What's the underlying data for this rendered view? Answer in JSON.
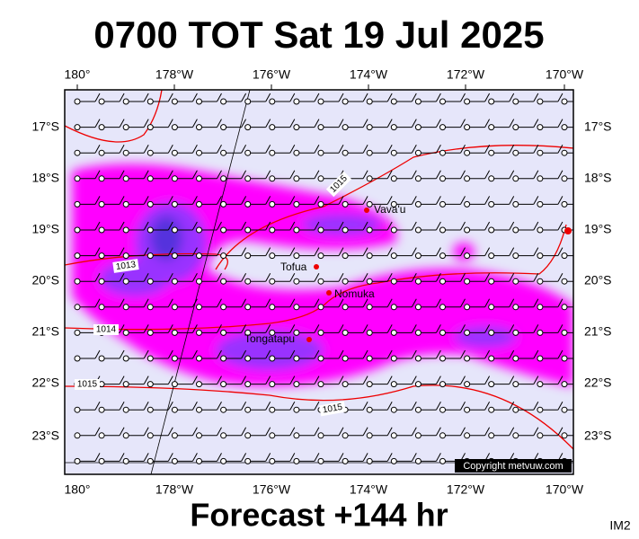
{
  "header": {
    "title": "0700 TOT Sat 19 Jul 2025"
  },
  "map": {
    "lon_labels": [
      "180°",
      "178°W",
      "176°W",
      "174°W",
      "172°W",
      "170°W"
    ],
    "lat_labels": [
      "17°S",
      "18°S",
      "19°S",
      "20°S",
      "21°S",
      "22°S",
      "23°S"
    ],
    "places": [
      "Vava'u",
      "Tofua",
      "Nomuka",
      "Tongatapu"
    ],
    "isobar_labels": [
      "1015",
      "1013",
      "1014",
      "1015",
      "1015"
    ],
    "copyright": "Copyright metvuw.com"
  },
  "footer": {
    "forecast": "Forecast +144 hr",
    "image_id": "IM2"
  }
}
